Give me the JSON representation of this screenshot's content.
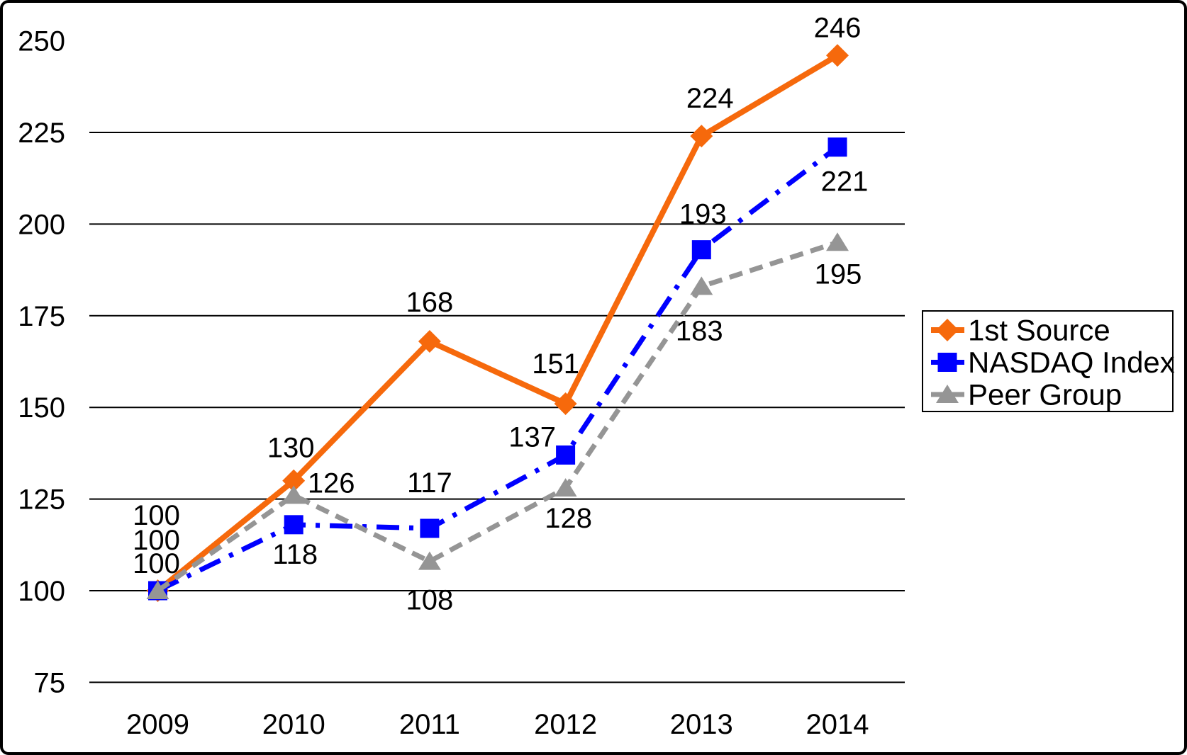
{
  "chart_data": {
    "type": "line",
    "title": "",
    "xlabel": "",
    "ylabel": "",
    "x_categories": [
      "2009",
      "2010",
      "2011",
      "2012",
      "2013",
      "2014"
    ],
    "series": [
      {
        "name": "1st Source",
        "color": "#F6690C",
        "marker": "diamond",
        "line_style": "solid",
        "values": [
          100,
          130,
          168,
          151,
          224,
          246
        ]
      },
      {
        "name": "NASDAQ Index",
        "color": "#0000FF",
        "marker": "square",
        "line_style": "dash-dot",
        "values": [
          100,
          118,
          117,
          137,
          193,
          221
        ]
      },
      {
        "name": "Peer Group",
        "color": "#959595",
        "marker": "triangle",
        "line_style": "dashed",
        "values": [
          100,
          126,
          108,
          128,
          183,
          195
        ]
      }
    ],
    "ylim": [
      75,
      250
    ],
    "ytick_values": [
      75,
      100,
      125,
      150,
      175,
      200,
      225,
      250
    ],
    "gridline_values": [
      75,
      100,
      125,
      150,
      175,
      200,
      225
    ],
    "grid": "horizontal",
    "gridline_color": "#000000",
    "data_labels": true,
    "legend_position": "right",
    "legend_border_color": "#000000",
    "background": "#FFFFFF",
    "text_color": "#000000"
  }
}
